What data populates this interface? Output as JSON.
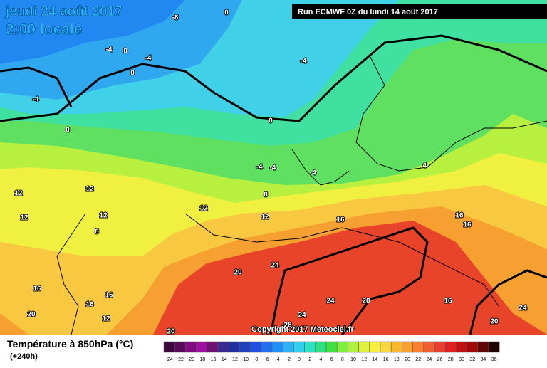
{
  "header": {
    "date": "jeudi 24 août 2017",
    "time": "2:00 locale",
    "run": "Run ECMWF 0Z du lundi 14 août 2017"
  },
  "copyright": "Copyright 2017 Meteociel.fr",
  "contour_labels": [
    "-8",
    "0",
    "-4",
    "0",
    "-4",
    "0",
    "-4",
    "-4",
    "0",
    "0",
    "-4",
    "-4",
    "4",
    "4",
    "12",
    "12",
    "12",
    "12",
    "8",
    "12",
    "12",
    "8",
    "16",
    "16",
    "16",
    "20",
    "24",
    "16",
    "16",
    "16",
    "12",
    "20",
    "20",
    "24",
    "20",
    "24",
    "28",
    "16",
    "24",
    "20"
  ],
  "legend": {
    "title": "Température à 850hPa (°C)",
    "subtitle": "(+240h)",
    "ticks": [
      -24,
      -22,
      -20,
      -18,
      -16,
      -14,
      -12,
      -10,
      -8,
      -6,
      -4,
      -2,
      0,
      2,
      4,
      6,
      8,
      10,
      12,
      14,
      16,
      18,
      20,
      22,
      24,
      26,
      28,
      30,
      32,
      34,
      36
    ],
    "colors": [
      "#3a0a3a",
      "#5a0a5a",
      "#800a80",
      "#a010a0",
      "#701070",
      "#3c2890",
      "#2030a0",
      "#2040c0",
      "#2050e0",
      "#2070f0",
      "#2090f8",
      "#30b0f8",
      "#30d0f0",
      "#30e0c0",
      "#30e080",
      "#40e040",
      "#80f040",
      "#b0f040",
      "#e0f040",
      "#f8f040",
      "#f8d840",
      "#f8b830",
      "#f8a030",
      "#f88030",
      "#f06030",
      "#e84030",
      "#e02020",
      "#c01010",
      "#a00a0a",
      "#600808",
      "#200404"
    ]
  }
}
